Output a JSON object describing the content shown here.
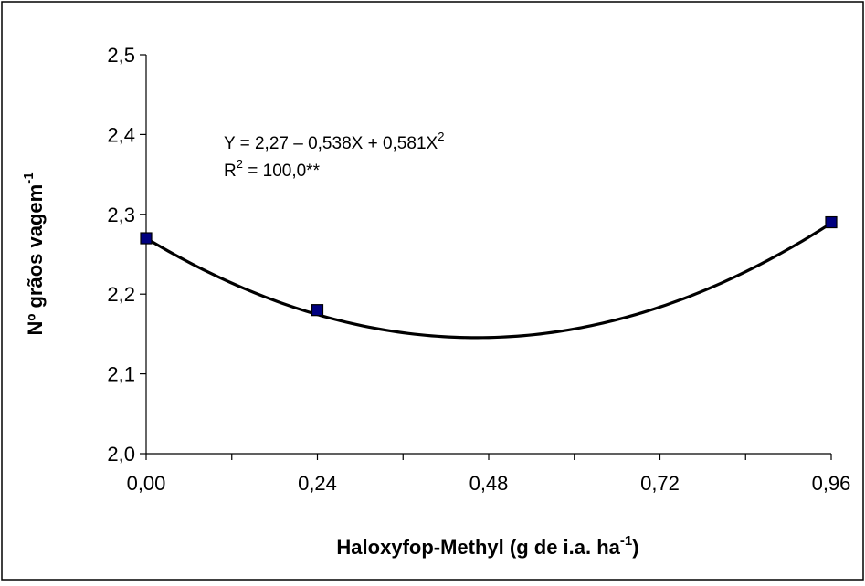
{
  "chart_data": {
    "type": "scatter",
    "title": "",
    "xlabel": {
      "main": "Haloxyfop-Methyl (g de i.a. ha",
      "sup": "-1",
      "tail": ")"
    },
    "ylabel": {
      "main": "Nº grãos vagem",
      "sup": "-1"
    },
    "xlim": [
      0,
      0.96
    ],
    "ylim": [
      2.0,
      2.5
    ],
    "x_ticks": [
      "0,00",
      "0,24",
      "0,48",
      "0,72",
      "0,96"
    ],
    "y_ticks": [
      "2,0",
      "2,1",
      "2,2",
      "2,3",
      "2,4",
      "2,5"
    ],
    "x_tick_values": [
      0,
      0.24,
      0.48,
      0.72,
      0.96
    ],
    "y_tick_values": [
      2.0,
      2.1,
      2.2,
      2.3,
      2.4,
      2.5
    ],
    "grid": false,
    "legend": "none",
    "series": [
      {
        "x": [
          0,
          0.24,
          0.96
        ],
        "y": [
          2.27,
          2.18,
          2.29
        ],
        "marker": "square",
        "marker_color": "#000080"
      }
    ],
    "fit": {
      "type": "polynomial",
      "coefficients": [
        2.27,
        -0.538,
        0.581
      ],
      "color": "#000000"
    },
    "annotations": {
      "equation": {
        "main": "Y = 2,27 – 0,538X + 0,581X",
        "sup": "2"
      },
      "r2": {
        "pre": "R",
        "sup": "2",
        "post": " = 100,0**"
      }
    }
  }
}
